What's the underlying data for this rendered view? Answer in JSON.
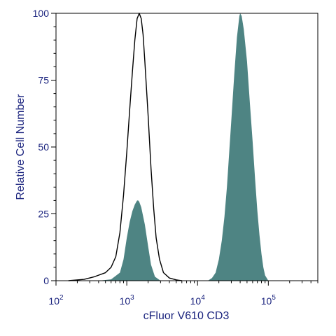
{
  "chart_data": {
    "type": "area",
    "title": "",
    "xlabel": "cFluor V610 CD3",
    "ylabel": "Relative Cell Number",
    "x_scale": "log",
    "xlim": [
      100,
      500000
    ],
    "ylim": [
      0,
      100
    ],
    "x_ticks": [
      {
        "value": 100,
        "base": "10",
        "exp": "2"
      },
      {
        "value": 1000,
        "base": "10",
        "exp": "3"
      },
      {
        "value": 10000,
        "base": "10",
        "exp": "4"
      },
      {
        "value": 100000,
        "base": "10",
        "exp": "5"
      }
    ],
    "y_ticks": [
      {
        "value": 0,
        "label": "0"
      },
      {
        "value": 25,
        "label": "25"
      },
      {
        "value": 50,
        "label": "50"
      },
      {
        "value": 75,
        "label": "75"
      },
      {
        "value": 100,
        "label": "100"
      }
    ],
    "grid": false,
    "legend": "none",
    "series": [
      {
        "style": "filled",
        "color": "#4e8483",
        "points": [
          [
            400,
            0
          ],
          [
            600,
            0.5
          ],
          [
            800,
            3
          ],
          [
            900,
            8
          ],
          [
            1000,
            16
          ],
          [
            1100,
            22
          ],
          [
            1200,
            26
          ],
          [
            1300,
            28.5
          ],
          [
            1400,
            30
          ],
          [
            1450,
            30
          ],
          [
            1500,
            29.5
          ],
          [
            1600,
            27.5
          ],
          [
            1800,
            21
          ],
          [
            2000,
            13
          ],
          [
            2200,
            6
          ],
          [
            2500,
            1.5
          ],
          [
            3000,
            0
          ],
          [
            14000,
            0
          ],
          [
            16000,
            1
          ],
          [
            18000,
            3
          ],
          [
            20000,
            8
          ],
          [
            22000,
            15
          ],
          [
            24000,
            24
          ],
          [
            26000,
            35
          ],
          [
            28000,
            48
          ],
          [
            30000,
            60
          ],
          [
            33000,
            77
          ],
          [
            36000,
            91
          ],
          [
            39000,
            99
          ],
          [
            40000,
            100
          ],
          [
            42000,
            99
          ],
          [
            45000,
            94
          ],
          [
            50000,
            82
          ],
          [
            55000,
            66
          ],
          [
            60000,
            52
          ],
          [
            65000,
            38
          ],
          [
            70000,
            26
          ],
          [
            75000,
            17
          ],
          [
            80000,
            10
          ],
          [
            85000,
            5
          ],
          [
            90000,
            2
          ],
          [
            100000,
            0
          ]
        ]
      },
      {
        "style": "outline",
        "color": "#000000",
        "points": [
          [
            150,
            0
          ],
          [
            250,
            0.5
          ],
          [
            350,
            1.5
          ],
          [
            500,
            3
          ],
          [
            600,
            5
          ],
          [
            700,
            9
          ],
          [
            800,
            18
          ],
          [
            900,
            32
          ],
          [
            1000,
            48
          ],
          [
            1100,
            64
          ],
          [
            1200,
            78
          ],
          [
            1300,
            90
          ],
          [
            1400,
            98
          ],
          [
            1500,
            100
          ],
          [
            1600,
            98
          ],
          [
            1700,
            92
          ],
          [
            1800,
            82
          ],
          [
            2000,
            62
          ],
          [
            2200,
            42
          ],
          [
            2400,
            27
          ],
          [
            2600,
            16
          ],
          [
            2900,
            8
          ],
          [
            3300,
            3
          ],
          [
            4000,
            1
          ],
          [
            5000,
            0.3
          ],
          [
            6000,
            0
          ]
        ]
      }
    ]
  },
  "colors": {
    "axis": "#000000",
    "text": "#1a237e",
    "fill": "#4e8483"
  }
}
